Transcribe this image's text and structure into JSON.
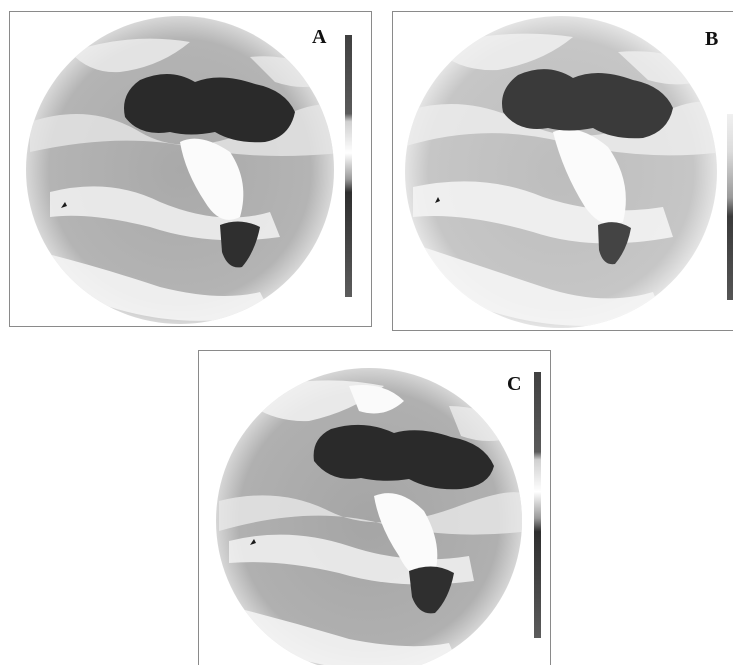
{
  "panels": [
    {
      "id": "a",
      "label": "A"
    },
    {
      "id": "b",
      "label": "B"
    },
    {
      "id": "c",
      "label": "C"
    }
  ],
  "colors": {
    "ocean": "#a7a7a7",
    "cloud": "#f4f4f4",
    "land": "#2b2b2b",
    "frame": "#8a8a8a"
  },
  "icons": [
    "globe-image",
    "color-scale-bar"
  ]
}
